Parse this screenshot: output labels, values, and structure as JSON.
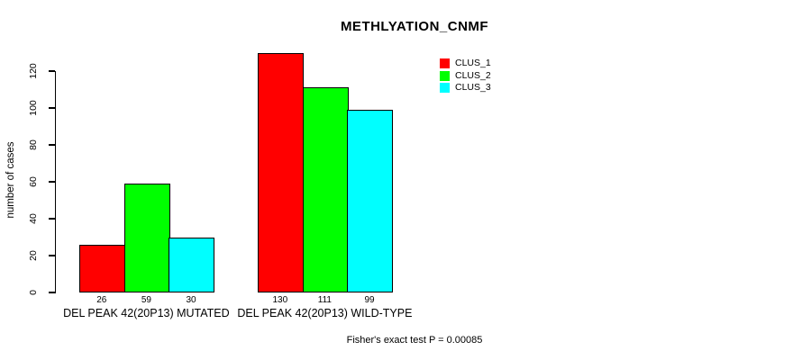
{
  "chart_data": {
    "type": "bar",
    "title": "METHLYATION_CNMF",
    "ylabel": "number of cases",
    "xlabel": "",
    "categories": [
      "DEL PEAK 42(20P13) MUTATED",
      "DEL PEAK 42(20P13) WILD-TYPE"
    ],
    "series": [
      {
        "name": "CLUS_1",
        "color": "#ff0000",
        "values": [
          26,
          130
        ]
      },
      {
        "name": "CLUS_2",
        "color": "#00ff00",
        "values": [
          59,
          111
        ]
      },
      {
        "name": "CLUS_3",
        "color": "#00ffff",
        "values": [
          30,
          99
        ]
      }
    ],
    "yticks": [
      0,
      20,
      40,
      60,
      80,
      100,
      120
    ],
    "ylim": [
      0,
      130
    ],
    "axis_max_labeled": 120,
    "bar_value_labels_shown": true,
    "grid": false,
    "legend_position": "top-right",
    "annotation": "Fisher's exact test P = 0.00085"
  }
}
